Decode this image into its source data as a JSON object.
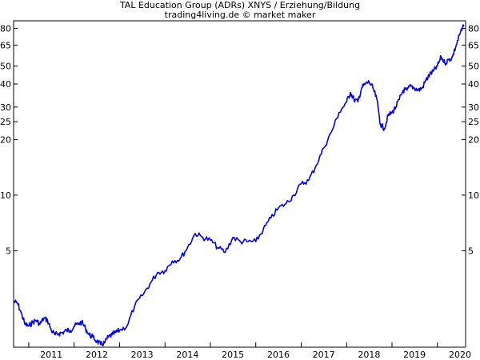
{
  "chart_data": {
    "type": "line",
    "title": "TAL Education Group (ADRs) XNYS / Erziehung/Bildung",
    "subtitle": "trading4living.de © market maker",
    "xlabel": "",
    "ylabel": "",
    "y_scale": "log",
    "ylim": [
      1.5,
      88
    ],
    "xlim": [
      "2010-09-01",
      "2020-08-15"
    ],
    "grid": false,
    "legend": "none",
    "line_color": "#0000ee",
    "x_ticks": [
      "2011",
      "2012",
      "2013",
      "2014",
      "2015",
      "2016",
      "2017",
      "2018",
      "2019",
      "2020"
    ],
    "y_ticks": [
      5,
      10,
      20,
      25,
      30,
      40,
      50,
      65,
      80
    ],
    "series": [
      {
        "x": [
          "2010-09-01",
          "2010-10-01",
          "2010-11-01",
          "2010-12-01",
          "2011-01-01",
          "2011-02-01",
          "2011-03-01",
          "2011-04-01",
          "2011-05-01",
          "2011-06-01",
          "2011-07-01",
          "2011-08-01",
          "2011-09-01",
          "2011-10-01",
          "2011-11-01",
          "2011-12-01",
          "2012-01-01",
          "2012-02-01",
          "2012-03-01",
          "2012-04-01",
          "2012-05-01",
          "2012-06-01",
          "2012-07-01",
          "2012-08-01",
          "2012-09-01",
          "2012-10-01",
          "2012-11-01",
          "2012-12-01",
          "2013-01-01",
          "2013-03-01",
          "2013-05-01",
          "2013-07-01",
          "2013-09-01",
          "2013-11-01",
          "2014-01-01",
          "2014-03-01",
          "2014-05-01",
          "2014-07-01",
          "2014-09-01",
          "2014-11-01",
          "2015-01-01",
          "2015-03-01",
          "2015-05-01",
          "2015-07-01",
          "2015-09-01",
          "2015-11-01",
          "2016-01-01",
          "2016-03-01",
          "2016-05-01",
          "2016-07-01",
          "2016-09-01",
          "2016-11-01",
          "2017-01-01",
          "2017-03-01",
          "2017-05-01",
          "2017-07-01",
          "2017-09-01",
          "2017-11-01",
          "2018-01-01",
          "2018-02-01",
          "2018-03-01",
          "2018-04-01",
          "2018-05-01",
          "2018-06-01",
          "2018-07-01",
          "2018-08-01",
          "2018-09-01",
          "2018-10-01",
          "2018-11-01",
          "2018-12-01",
          "2019-01-01",
          "2019-02-01",
          "2019-03-01",
          "2019-04-01",
          "2019-05-01",
          "2019-06-01",
          "2019-07-01",
          "2019-08-01",
          "2019-09-01",
          "2019-10-01",
          "2019-11-01",
          "2019-12-01",
          "2020-01-01",
          "2020-02-01",
          "2020-03-01",
          "2020-04-01",
          "2020-05-01",
          "2020-06-01",
          "2020-07-01",
          "2020-08-01"
        ],
        "y": [
          2.65,
          2.6,
          2.3,
          2.0,
          1.95,
          2.05,
          2.1,
          2.0,
          2.15,
          2.1,
          1.85,
          1.75,
          1.78,
          1.8,
          1.85,
          1.85,
          1.95,
          2.0,
          2.05,
          1.9,
          1.75,
          1.7,
          1.62,
          1.55,
          1.58,
          1.7,
          1.75,
          1.8,
          1.85,
          1.95,
          2.5,
          2.85,
          3.3,
          3.8,
          3.9,
          4.4,
          4.5,
          5.2,
          6.2,
          5.9,
          5.7,
          5.2,
          4.9,
          5.9,
          5.6,
          5.6,
          5.6,
          6.5,
          7.5,
          8.5,
          9.0,
          10.0,
          11.5,
          12.0,
          14.5,
          18.0,
          22.0,
          28.0,
          32.0,
          36.0,
          33.0,
          32.0,
          38.0,
          40.0,
          41.0,
          38.0,
          33.0,
          24.0,
          23.0,
          27.0,
          28.0,
          30.0,
          33.0,
          37.0,
          37.0,
          39.0,
          38.0,
          37.0,
          38.0,
          42.0,
          45.0,
          47.0,
          50.0,
          56.0,
          52.0,
          54.0,
          56.0,
          65.0,
          75.0,
          82.0
        ]
      }
    ]
  }
}
